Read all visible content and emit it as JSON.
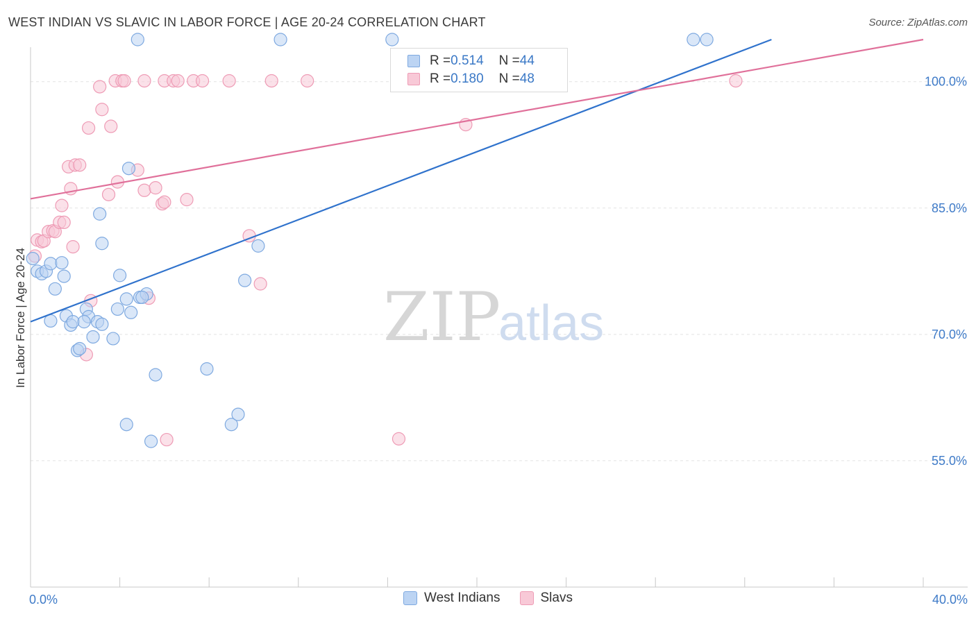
{
  "header": {
    "title": "WEST INDIAN VS SLAVIC IN LABOR FORCE | AGE 20-24 CORRELATION CHART",
    "source": "Source: ZipAtlas.com"
  },
  "watermark": {
    "zip": "ZIP",
    "atlas": "atlas"
  },
  "legend": {
    "rows": [
      {
        "r_label": "R = ",
        "r_value": "0.514",
        "n_label": "N = ",
        "n_value": "44"
      },
      {
        "r_label": "R = ",
        "r_value": "0.180",
        "n_label": "N = ",
        "n_value": "48"
      }
    ]
  },
  "bottom_legend": {
    "west": "West Indians",
    "slavs": "Slavs"
  },
  "colors": {
    "blue_fill": "#bcd4f3",
    "blue_stroke": "#7ea9e0",
    "blue_line": "#2f72cc",
    "pink_fill": "#f8c9d7",
    "pink_stroke": "#ee9bb5",
    "pink_line": "#e0709a",
    "grid": "#e3e3e3",
    "tick_text": "#3f7bc8"
  },
  "chart_data": {
    "type": "scatter",
    "title": "WEST INDIAN VS SLAVIC IN LABOR FORCE | AGE 20-24 CORRELATION CHART",
    "xlabel": "",
    "ylabel": "In Labor Force | Age 20-24",
    "xlim": [
      0,
      40
    ],
    "ylim": [
      40,
      105
    ],
    "x_tick_labels": [
      {
        "value": 0,
        "label": "0.0%"
      },
      {
        "value": 40,
        "label": "40.0%"
      }
    ],
    "y_tick_labels": [
      {
        "value": 55,
        "label": "55.0%"
      },
      {
        "value": 70,
        "label": "70.0%"
      },
      {
        "value": 85,
        "label": "85.0%"
      },
      {
        "value": 100,
        "label": "100.0%"
      }
    ],
    "grid_y": [
      55,
      70,
      85,
      100
    ],
    "series": [
      {
        "name": "West Indians",
        "color": "#7ea9e0",
        "r": 0.514,
        "n": 44,
        "trend": {
          "x0": 0,
          "y0": 71.5,
          "x1": 33.2,
          "y1": 105
        },
        "points": [
          [
            0.1,
            79
          ],
          [
            0.3,
            77.5
          ],
          [
            0.5,
            77.2
          ],
          [
            0.7,
            77.5
          ],
          [
            0.9,
            78.4
          ],
          [
            1.4,
            78.5
          ],
          [
            1.5,
            76.9
          ],
          [
            1.1,
            75.4
          ],
          [
            0.9,
            71.6
          ],
          [
            1.6,
            72.2
          ],
          [
            1.8,
            71.1
          ],
          [
            1.9,
            71.5
          ],
          [
            2.5,
            73
          ],
          [
            2.6,
            72.1
          ],
          [
            2.4,
            71.5
          ],
          [
            2.8,
            69.7
          ],
          [
            3.0,
            71.5
          ],
          [
            3.2,
            71.2
          ],
          [
            3.7,
            69.5
          ],
          [
            2.1,
            68.1
          ],
          [
            2.2,
            68.3
          ],
          [
            3.9,
            73
          ],
          [
            4.0,
            77
          ],
          [
            4.3,
            74.2
          ],
          [
            4.5,
            72.6
          ],
          [
            4.9,
            74.4
          ],
          [
            5.2,
            74.8
          ],
          [
            5.0,
            74.4
          ],
          [
            3.1,
            84.3
          ],
          [
            3.2,
            80.8
          ],
          [
            4.4,
            89.7
          ],
          [
            4.8,
            105
          ],
          [
            5.6,
            65.2
          ],
          [
            5.4,
            57.3
          ],
          [
            4.3,
            59.3
          ],
          [
            7.9,
            65.9
          ],
          [
            9.0,
            59.3
          ],
          [
            9.3,
            60.5
          ],
          [
            9.6,
            76.4
          ],
          [
            10.2,
            80.5
          ],
          [
            16.2,
            105
          ],
          [
            11.2,
            105
          ],
          [
            29.7,
            105
          ],
          [
            30.3,
            105
          ]
        ]
      },
      {
        "name": "Slavs",
        "color": "#ee9bb5",
        "r": 0.18,
        "n": 48,
        "trend": {
          "x0": 0,
          "y0": 86.1,
          "x1": 40,
          "y1": 105
        },
        "points": [
          [
            0.2,
            79.3
          ],
          [
            0.3,
            81.2
          ],
          [
            0.5,
            81.0
          ],
          [
            0.6,
            81.1
          ],
          [
            0.8,
            82.2
          ],
          [
            1.0,
            82.3
          ],
          [
            1.1,
            82.2
          ],
          [
            1.3,
            83.3
          ],
          [
            1.5,
            83.3
          ],
          [
            1.4,
            85.3
          ],
          [
            1.8,
            87.3
          ],
          [
            1.7,
            89.9
          ],
          [
            2.0,
            90.1
          ],
          [
            2.2,
            90.1
          ],
          [
            3.5,
            86.6
          ],
          [
            3.9,
            88.1
          ],
          [
            4.8,
            89.5
          ],
          [
            5.1,
            87.1
          ],
          [
            5.6,
            87.4
          ],
          [
            5.9,
            85.5
          ],
          [
            6.0,
            85.7
          ],
          [
            7.0,
            86.0
          ],
          [
            3.2,
            96.7
          ],
          [
            2.6,
            94.5
          ],
          [
            3.6,
            94.7
          ],
          [
            3.1,
            99.4
          ],
          [
            3.8,
            100.1
          ],
          [
            4.1,
            100.1
          ],
          [
            4.2,
            100.1
          ],
          [
            5.1,
            100.1
          ],
          [
            6.0,
            100.1
          ],
          [
            6.4,
            100.1
          ],
          [
            6.6,
            100.1
          ],
          [
            7.3,
            100.1
          ],
          [
            7.7,
            100.1
          ],
          [
            8.9,
            100.1
          ],
          [
            10.8,
            100.1
          ],
          [
            12.4,
            100.1
          ],
          [
            19.5,
            94.9
          ],
          [
            31.6,
            100.1
          ],
          [
            2.7,
            74.0
          ],
          [
            2.5,
            67.6
          ],
          [
            5.3,
            74.3
          ],
          [
            6.1,
            57.5
          ],
          [
            10.3,
            76.0
          ],
          [
            16.5,
            57.6
          ],
          [
            9.8,
            81.7
          ],
          [
            1.9,
            80.4
          ]
        ]
      }
    ]
  }
}
